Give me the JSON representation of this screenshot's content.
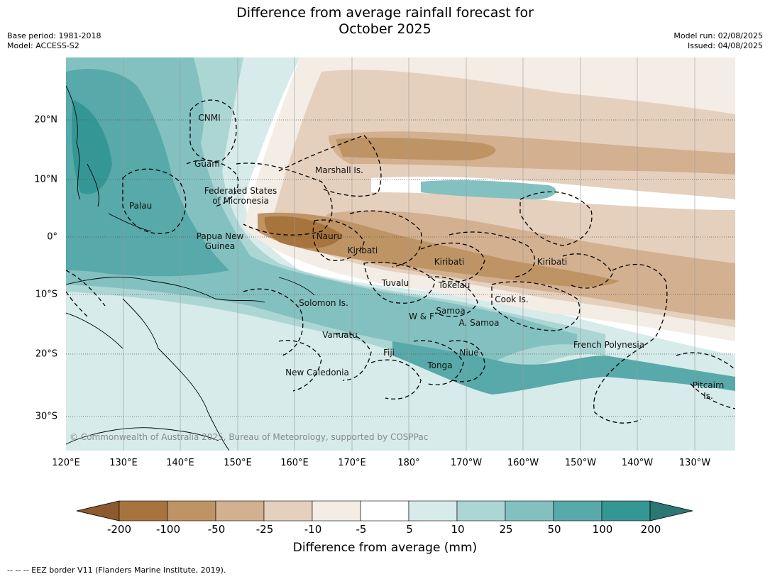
{
  "title_line1": "Difference from average rainfall forecast for",
  "title_line2": "October 2025",
  "meta": {
    "base_period": "Base period: 1981-2018",
    "model": "Model: ACCESS-S2",
    "model_run": "Model run: 02/08/2025",
    "issued": "Issued: 04/08/2025"
  },
  "copyright": "© Commonwealth of Australia 2025, Bureau of Meteorology, supported by COSPPac",
  "lat_ticks": [
    "20°N",
    "10°N",
    "0°",
    "10°S",
    "20°S",
    "30°S"
  ],
  "lon_ticks": [
    "120°E",
    "130°E",
    "140°E",
    "150°E",
    "160°E",
    "170°E",
    "180°",
    "170°W",
    "160°W",
    "150°W",
    "140°W",
    "130°W"
  ],
  "region_labels": {
    "cnmi": "CNMI",
    "guam": "Guam",
    "marshall": "Marshall Is.",
    "fsm_1": "Federated States",
    "fsm_2": "of Micronesia",
    "palau": "Palau",
    "png_1": "Papua New",
    "png_2": "Guinea",
    "nauru": "Nauru",
    "kiribati_w": "Kiribati",
    "kiribati_c": "Kiribati",
    "kiribati_e": "Kiribati",
    "tuvalu": "Tuvalu",
    "tokelau": "Tokelau",
    "cook": "Cook Is.",
    "solomon": "Solomon Is.",
    "samoa": "Samoa",
    "wf": "W & F",
    "asamoa": "A. Samoa",
    "vanuatu": "Vanuatu",
    "fiji": "Fiji",
    "niue": "Niue",
    "tonga": "Tonga",
    "frpoly": "French Polynesia",
    "newcal": "New Caledonia",
    "pitcairn_1": "Pitcairn",
    "pitcairn_2": "Is."
  },
  "colorbar": {
    "ticks": [
      "-200",
      "-100",
      "-50",
      "-25",
      "-10",
      "-5",
      "5",
      "10",
      "25",
      "50",
      "100",
      "200"
    ],
    "colors": [
      "#8c5a2c",
      "#a8743d",
      "#bf9464",
      "#d3b090",
      "#e5d0be",
      "#f3ede6",
      "#ffffff",
      "#d6ebea",
      "#acd6d4",
      "#83c1c0",
      "#58a9a9",
      "#359795",
      "#2b7775"
    ],
    "label": "Difference from average (mm)"
  },
  "footnote": "--  --  -- EEZ border V11 (Flanders Marine Institute, 2019)."
}
